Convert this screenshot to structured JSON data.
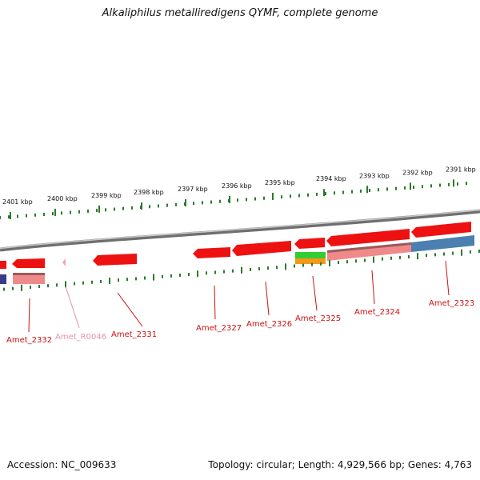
{
  "title": "Alkaliphilus metalliredigens QYMF, complete genome",
  "footer": {
    "accession": "Accession: NC_009633",
    "topology": "Topology: circular; Length: 4,929,566 bp; Genes: 4,763"
  },
  "colors": {
    "forward_gene": "#ee1111",
    "rrna_pink": "#f2a0c0",
    "label_red": "#cc1111",
    "label_pink": "#e890b0",
    "tick_green": "#2a7a2a",
    "backbone": "#888888",
    "cds_pink": "#f08a8a",
    "cds_blue": "#4a7fb0",
    "cds_navy": "#3a3a8a",
    "green_feature": "#33cc33",
    "orange_feature": "#f39a1a"
  },
  "chart_data": {
    "type": "genome-map",
    "scale_unit": "kbp",
    "tick_labels": [
      "2401 kbp",
      "2400 kbp",
      "2399 kbp",
      "2398 kbp",
      "2397 kbp",
      "2396 kbp",
      "2395 kbp",
      "2394 kbp",
      "2393 kbp",
      "2392 kbp",
      "2391 kbp"
    ],
    "gene_labels": [
      {
        "name": "Amet_2332",
        "kind": "gene"
      },
      {
        "name": "Amet_R0046",
        "kind": "rRNA"
      },
      {
        "name": "Amet_2331",
        "kind": "gene"
      },
      {
        "name": "Amet_2327",
        "kind": "gene"
      },
      {
        "name": "Amet_2326",
        "kind": "gene"
      },
      {
        "name": "Amet_2325",
        "kind": "gene"
      },
      {
        "name": "Amet_2324",
        "kind": "gene"
      },
      {
        "name": "Amet_2323",
        "kind": "gene"
      }
    ]
  }
}
